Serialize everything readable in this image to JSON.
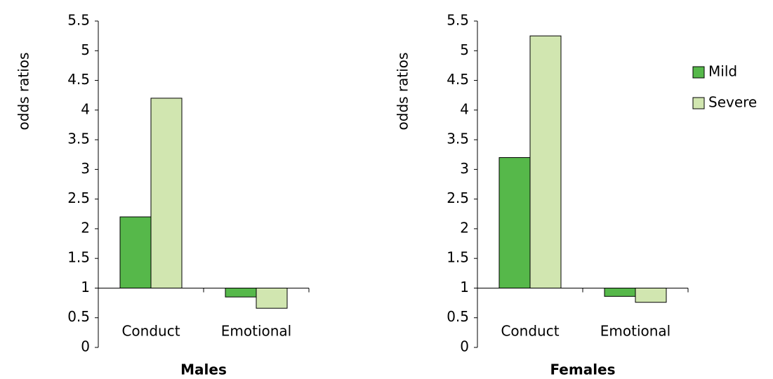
{
  "chart_data": [
    {
      "type": "bar",
      "title": "Males",
      "ylabel": "odds ratios",
      "categories": [
        "Conduct",
        "Emotional"
      ],
      "series": [
        {
          "name": "Mild",
          "color": "#56b84a",
          "values": [
            2.2,
            0.85
          ]
        },
        {
          "name": "Severe",
          "color": "#d1e6b0",
          "values": [
            4.2,
            0.66
          ]
        }
      ],
      "ylim": [
        0,
        5.5
      ],
      "yticks": [
        0,
        0.5,
        1,
        1.5,
        2,
        2.5,
        3,
        3.5,
        4,
        4.5,
        5,
        5.5
      ],
      "baseline": 1
    },
    {
      "type": "bar",
      "title": "Females",
      "ylabel": "odds ratios",
      "categories": [
        "Conduct",
        "Emotional"
      ],
      "series": [
        {
          "name": "Mild",
          "color": "#56b84a",
          "values": [
            3.2,
            0.86
          ]
        },
        {
          "name": "Severe",
          "color": "#d1e6b0",
          "values": [
            5.25,
            0.76
          ]
        }
      ],
      "ylim": [
        0,
        5.5
      ],
      "yticks": [
        0,
        0.5,
        1,
        1.5,
        2,
        2.5,
        3,
        3.5,
        4,
        4.5,
        5,
        5.5
      ],
      "baseline": 1,
      "legend": "right"
    }
  ]
}
